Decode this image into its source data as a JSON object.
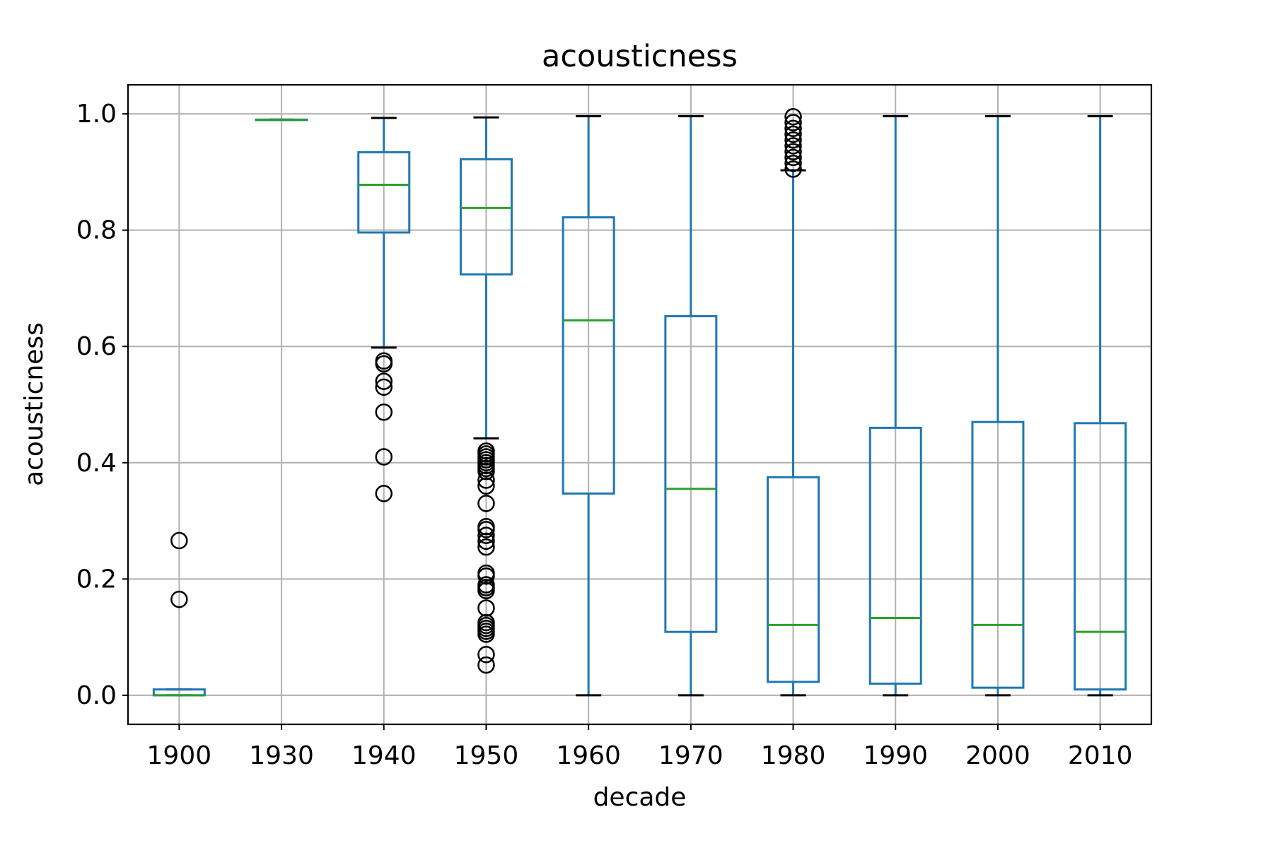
{
  "chart_data": {
    "type": "boxplot",
    "title": "acousticness",
    "xlabel": "decade",
    "ylabel": "acousticness",
    "ylim": [
      -0.05,
      1.05
    ],
    "yticks": [
      0.0,
      0.2,
      0.4,
      0.6,
      0.8,
      1.0
    ],
    "ytick_labels": [
      "0.0",
      "0.2",
      "0.4",
      "0.6",
      "0.8",
      "1.0"
    ],
    "grid": true,
    "colors": {
      "box": "#1f77b4",
      "median": "#2ca02c",
      "whisker_cap": "#000000",
      "outlier": "#000000",
      "grid": "#b0b0b0"
    },
    "categories": [
      "1900",
      "1930",
      "1940",
      "1950",
      "1960",
      "1970",
      "1980",
      "1990",
      "2000",
      "2010"
    ],
    "boxes": [
      {
        "category": "1900",
        "whisker_low": 0.0,
        "q1": 0.0,
        "median": 0.0,
        "q3": 0.01,
        "whisker_high": 0.01,
        "outliers": [
          0.165,
          0.266
        ]
      },
      {
        "category": "1930",
        "whisker_low": 0.99,
        "q1": 0.99,
        "median": 0.99,
        "q3": 0.99,
        "whisker_high": 0.99,
        "outliers": []
      },
      {
        "category": "1940",
        "whisker_low": 0.598,
        "q1": 0.796,
        "median": 0.878,
        "q3": 0.934,
        "whisker_high": 0.993,
        "outliers": [
          0.347,
          0.41,
          0.487,
          0.53,
          0.54,
          0.57,
          0.575
        ]
      },
      {
        "category": "1950",
        "whisker_low": 0.442,
        "q1": 0.724,
        "median": 0.838,
        "q3": 0.922,
        "whisker_high": 0.994,
        "outliers": [
          0.052,
          0.07,
          0.105,
          0.11,
          0.115,
          0.12,
          0.125,
          0.15,
          0.18,
          0.185,
          0.19,
          0.205,
          0.21,
          0.255,
          0.265,
          0.275,
          0.285,
          0.29,
          0.33,
          0.36,
          0.37,
          0.385,
          0.39,
          0.395,
          0.4,
          0.405,
          0.41,
          0.415,
          0.42
        ]
      },
      {
        "category": "1960",
        "whisker_low": 0.0,
        "q1": 0.347,
        "median": 0.645,
        "q3": 0.822,
        "whisker_high": 0.996,
        "outliers": []
      },
      {
        "category": "1970",
        "whisker_low": 0.0,
        "q1": 0.109,
        "median": 0.355,
        "q3": 0.652,
        "whisker_high": 0.996,
        "outliers": []
      },
      {
        "category": "1980",
        "whisker_low": 0.0,
        "q1": 0.023,
        "median": 0.121,
        "q3": 0.375,
        "whisker_high": 0.903,
        "outliers": [
          0.905,
          0.915,
          0.925,
          0.935,
          0.945,
          0.955,
          0.965,
          0.975,
          0.985,
          0.995
        ]
      },
      {
        "category": "1990",
        "whisker_low": 0.0,
        "q1": 0.02,
        "median": 0.133,
        "q3": 0.46,
        "whisker_high": 0.996,
        "outliers": []
      },
      {
        "category": "2000",
        "whisker_low": 0.0,
        "q1": 0.013,
        "median": 0.121,
        "q3": 0.47,
        "whisker_high": 0.996,
        "outliers": []
      },
      {
        "category": "2010",
        "whisker_low": 0.0,
        "q1": 0.01,
        "median": 0.109,
        "q3": 0.468,
        "whisker_high": 0.996,
        "outliers": []
      }
    ]
  }
}
